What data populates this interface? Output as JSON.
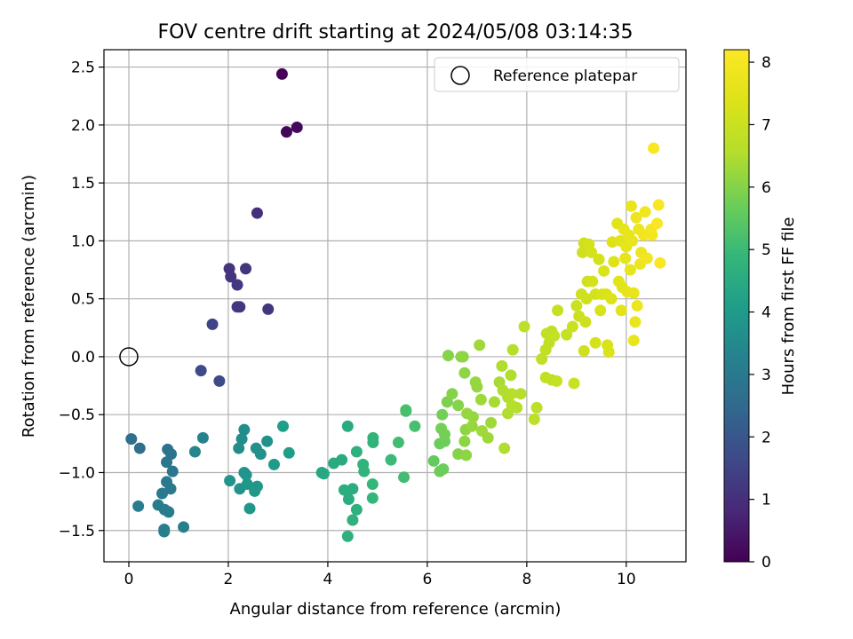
{
  "chart_data": {
    "type": "scatter",
    "title": "FOV centre drift starting at 2024/05/08 03:14:35",
    "xlabel": "Angular distance from reference (arcmin)",
    "ylabel": "Rotation from reference (arcmin)",
    "xlim": [
      -0.5,
      11.2
    ],
    "ylim": [
      -1.77,
      2.65
    ],
    "xticks": [
      0,
      2,
      4,
      6,
      8,
      10
    ],
    "yticks": [
      -1.5,
      -1.0,
      -0.5,
      0.0,
      0.5,
      1.0,
      1.5,
      2.0,
      2.5
    ],
    "xtick_labels": [
      "0",
      "2",
      "4",
      "6",
      "8",
      "10"
    ],
    "ytick_labels": [
      "−1.5",
      "−1.0",
      "−0.5",
      "0.0",
      "0.5",
      "1.0",
      "1.5",
      "2.0",
      "2.5"
    ],
    "grid": true,
    "legend": {
      "position": "top-right",
      "entries": [
        "Reference platepar"
      ]
    },
    "reference_point": {
      "x": 0.0,
      "y": 0.0
    },
    "colorbar": {
      "label": "Hours from first FF file",
      "colormap": "viridis",
      "range": [
        0,
        8.2
      ],
      "ticks": [
        0,
        1,
        2,
        3,
        4,
        5,
        6,
        7,
        8
      ],
      "tick_labels": [
        "0",
        "1",
        "2",
        "3",
        "4",
        "5",
        "6",
        "7",
        "8"
      ]
    },
    "points": [
      {
        "x": 3.08,
        "y": 2.44,
        "c": 0.05
      },
      {
        "x": 3.17,
        "y": 1.94,
        "c": 0.1
      },
      {
        "x": 3.38,
        "y": 1.98,
        "c": 0.15
      },
      {
        "x": 2.58,
        "y": 1.24,
        "c": 1.0
      },
      {
        "x": 2.02,
        "y": 0.76,
        "c": 1.1
      },
      {
        "x": 2.05,
        "y": 0.69,
        "c": 1.1
      },
      {
        "x": 2.35,
        "y": 0.76,
        "c": 1.15
      },
      {
        "x": 2.18,
        "y": 0.62,
        "c": 1.2
      },
      {
        "x": 2.18,
        "y": 0.43,
        "c": 1.2
      },
      {
        "x": 2.23,
        "y": 0.43,
        "c": 1.2
      },
      {
        "x": 2.8,
        "y": 0.41,
        "c": 1.15
      },
      {
        "x": 1.68,
        "y": 0.28,
        "c": 1.5
      },
      {
        "x": 1.45,
        "y": -0.12,
        "c": 1.7
      },
      {
        "x": 1.82,
        "y": -0.21,
        "c": 1.7
      },
      {
        "x": 0.05,
        "y": -0.71,
        "c": 2.7
      },
      {
        "x": 0.22,
        "y": -0.79,
        "c": 2.7
      },
      {
        "x": 0.78,
        "y": -0.8,
        "c": 2.8
      },
      {
        "x": 0.85,
        "y": -0.84,
        "c": 2.8
      },
      {
        "x": 0.76,
        "y": -0.91,
        "c": 2.9
      },
      {
        "x": 0.88,
        "y": -0.99,
        "c": 2.9
      },
      {
        "x": 0.76,
        "y": -1.08,
        "c": 3.0
      },
      {
        "x": 0.84,
        "y": -1.14,
        "c": 3.0
      },
      {
        "x": 0.67,
        "y": -1.18,
        "c": 3.0
      },
      {
        "x": 0.59,
        "y": -1.28,
        "c": 3.1
      },
      {
        "x": 0.72,
        "y": -1.32,
        "c": 3.1
      },
      {
        "x": 0.8,
        "y": -1.34,
        "c": 3.1
      },
      {
        "x": 0.19,
        "y": -1.29,
        "c": 3.1
      },
      {
        "x": 0.71,
        "y": -1.49,
        "c": 3.2
      },
      {
        "x": 0.71,
        "y": -1.51,
        "c": 3.2
      },
      {
        "x": 1.1,
        "y": -1.47,
        "c": 3.2
      },
      {
        "x": 1.33,
        "y": -0.82,
        "c": 3.4
      },
      {
        "x": 1.49,
        "y": -0.7,
        "c": 3.3
      },
      {
        "x": 2.27,
        "y": -0.71,
        "c": 3.6
      },
      {
        "x": 2.32,
        "y": -0.63,
        "c": 3.6
      },
      {
        "x": 2.21,
        "y": -0.79,
        "c": 3.6
      },
      {
        "x": 2.56,
        "y": -0.79,
        "c": 3.7
      },
      {
        "x": 2.65,
        "y": -0.84,
        "c": 3.7
      },
      {
        "x": 2.78,
        "y": -0.73,
        "c": 3.7
      },
      {
        "x": 2.32,
        "y": -1.0,
        "c": 3.8
      },
      {
        "x": 2.36,
        "y": -1.02,
        "c": 3.8
      },
      {
        "x": 2.03,
        "y": -1.07,
        "c": 3.8
      },
      {
        "x": 2.23,
        "y": -1.14,
        "c": 3.8
      },
      {
        "x": 2.38,
        "y": -1.1,
        "c": 3.9
      },
      {
        "x": 2.58,
        "y": -1.12,
        "c": 3.9
      },
      {
        "x": 2.53,
        "y": -1.16,
        "c": 3.9
      },
      {
        "x": 2.43,
        "y": -1.31,
        "c": 3.9
      },
      {
        "x": 2.92,
        "y": -0.93,
        "c": 4.0
      },
      {
        "x": 3.1,
        "y": -0.6,
        "c": 4.1
      },
      {
        "x": 3.22,
        "y": -0.83,
        "c": 4.1
      },
      {
        "x": 3.88,
        "y": -1.0,
        "c": 4.4
      },
      {
        "x": 3.92,
        "y": -1.01,
        "c": 4.4
      },
      {
        "x": 4.12,
        "y": -0.92,
        "c": 4.5
      },
      {
        "x": 4.28,
        "y": -0.89,
        "c": 4.5
      },
      {
        "x": 4.4,
        "y": -0.6,
        "c": 4.5
      },
      {
        "x": 4.33,
        "y": -1.15,
        "c": 4.6
      },
      {
        "x": 4.42,
        "y": -1.23,
        "c": 4.6
      },
      {
        "x": 4.5,
        "y": -1.14,
        "c": 4.6
      },
      {
        "x": 4.4,
        "y": -1.55,
        "c": 4.7
      },
      {
        "x": 4.5,
        "y": -1.41,
        "c": 4.7
      },
      {
        "x": 4.58,
        "y": -1.32,
        "c": 4.7
      },
      {
        "x": 4.58,
        "y": -0.82,
        "c": 4.7
      },
      {
        "x": 4.71,
        "y": -0.93,
        "c": 4.8
      },
      {
        "x": 4.73,
        "y": -0.99,
        "c": 4.8
      },
      {
        "x": 4.91,
        "y": -0.7,
        "c": 4.8
      },
      {
        "x": 4.91,
        "y": -0.74,
        "c": 4.8
      },
      {
        "x": 4.9,
        "y": -1.1,
        "c": 4.9
      },
      {
        "x": 4.9,
        "y": -1.22,
        "c": 4.9
      },
      {
        "x": 5.27,
        "y": -0.89,
        "c": 5.0
      },
      {
        "x": 5.42,
        "y": -0.74,
        "c": 5.1
      },
      {
        "x": 5.53,
        "y": -1.04,
        "c": 5.1
      },
      {
        "x": 5.57,
        "y": -0.46,
        "c": 5.2
      },
      {
        "x": 5.57,
        "y": -0.47,
        "c": 5.2
      },
      {
        "x": 5.75,
        "y": -0.6,
        "c": 5.2
      },
      {
        "x": 6.13,
        "y": -0.9,
        "c": 5.6
      },
      {
        "x": 6.25,
        "y": -0.99,
        "c": 5.7
      },
      {
        "x": 6.32,
        "y": -0.97,
        "c": 5.7
      },
      {
        "x": 6.25,
        "y": -0.75,
        "c": 5.7
      },
      {
        "x": 6.35,
        "y": -0.73,
        "c": 5.7
      },
      {
        "x": 6.3,
        "y": -0.5,
        "c": 5.8
      },
      {
        "x": 6.28,
        "y": -0.62,
        "c": 5.8
      },
      {
        "x": 6.35,
        "y": -0.67,
        "c": 5.8
      },
      {
        "x": 6.4,
        "y": -0.39,
        "c": 5.9
      },
      {
        "x": 6.42,
        "y": 0.01,
        "c": 6.0
      },
      {
        "x": 6.5,
        "y": -0.32,
        "c": 6.0
      },
      {
        "x": 6.62,
        "y": -0.42,
        "c": 6.0
      },
      {
        "x": 6.68,
        "y": 0.0,
        "c": 6.1
      },
      {
        "x": 6.72,
        "y": 0.0,
        "c": 6.1
      },
      {
        "x": 6.75,
        "y": -0.14,
        "c": 6.1
      },
      {
        "x": 6.62,
        "y": -0.84,
        "c": 6.0
      },
      {
        "x": 6.75,
        "y": -0.73,
        "c": 6.1
      },
      {
        "x": 6.77,
        "y": -0.63,
        "c": 6.1
      },
      {
        "x": 6.78,
        "y": -0.85,
        "c": 6.1
      },
      {
        "x": 6.8,
        "y": -0.49,
        "c": 6.2
      },
      {
        "x": 6.92,
        "y": -0.52,
        "c": 6.2
      },
      {
        "x": 6.9,
        "y": -0.6,
        "c": 6.2
      },
      {
        "x": 6.97,
        "y": -0.22,
        "c": 6.2
      },
      {
        "x": 7.0,
        "y": -0.26,
        "c": 6.2
      },
      {
        "x": 7.05,
        "y": 0.1,
        "c": 6.3
      },
      {
        "x": 7.08,
        "y": -0.37,
        "c": 6.3
      },
      {
        "x": 7.1,
        "y": -0.64,
        "c": 6.3
      },
      {
        "x": 7.22,
        "y": -0.7,
        "c": 6.3
      },
      {
        "x": 7.28,
        "y": -0.57,
        "c": 6.3
      },
      {
        "x": 7.35,
        "y": -0.39,
        "c": 6.4
      },
      {
        "x": 7.45,
        "y": -0.22,
        "c": 6.4
      },
      {
        "x": 7.5,
        "y": -0.08,
        "c": 6.5
      },
      {
        "x": 7.52,
        "y": -0.29,
        "c": 6.5
      },
      {
        "x": 7.55,
        "y": -0.79,
        "c": 6.5
      },
      {
        "x": 7.62,
        "y": -0.49,
        "c": 6.5
      },
      {
        "x": 7.62,
        "y": -0.35,
        "c": 6.5
      },
      {
        "x": 7.68,
        "y": -0.16,
        "c": 6.5
      },
      {
        "x": 7.7,
        "y": -0.42,
        "c": 6.6
      },
      {
        "x": 7.7,
        "y": -0.32,
        "c": 6.6
      },
      {
        "x": 7.72,
        "y": 0.06,
        "c": 6.6
      },
      {
        "x": 7.8,
        "y": -0.44,
        "c": 6.6
      },
      {
        "x": 7.88,
        "y": -0.32,
        "c": 6.6
      },
      {
        "x": 7.95,
        "y": 0.26,
        "c": 6.7
      },
      {
        "x": 8.15,
        "y": -0.54,
        "c": 6.7
      },
      {
        "x": 8.2,
        "y": -0.44,
        "c": 6.7
      },
      {
        "x": 8.3,
        "y": -0.02,
        "c": 6.8
      },
      {
        "x": 8.38,
        "y": 0.06,
        "c": 6.8
      },
      {
        "x": 8.4,
        "y": 0.2,
        "c": 6.8
      },
      {
        "x": 8.38,
        "y": -0.18,
        "c": 6.8
      },
      {
        "x": 8.45,
        "y": 0.12,
        "c": 6.8
      },
      {
        "x": 8.5,
        "y": 0.22,
        "c": 6.8
      },
      {
        "x": 8.5,
        "y": -0.2,
        "c": 6.8
      },
      {
        "x": 8.55,
        "y": 0.18,
        "c": 6.9
      },
      {
        "x": 8.6,
        "y": -0.21,
        "c": 6.9
      },
      {
        "x": 8.62,
        "y": 0.4,
        "c": 6.9
      },
      {
        "x": 8.8,
        "y": 0.19,
        "c": 6.9
      },
      {
        "x": 8.92,
        "y": 0.26,
        "c": 7.0
      },
      {
        "x": 8.95,
        "y": -0.23,
        "c": 7.0
      },
      {
        "x": 9.0,
        "y": 0.44,
        "c": 7.0
      },
      {
        "x": 9.05,
        "y": 0.35,
        "c": 7.0
      },
      {
        "x": 9.1,
        "y": 0.54,
        "c": 7.1
      },
      {
        "x": 9.12,
        "y": 0.9,
        "c": 7.1
      },
      {
        "x": 9.15,
        "y": 0.98,
        "c": 7.1
      },
      {
        "x": 9.15,
        "y": 0.05,
        "c": 7.1
      },
      {
        "x": 9.18,
        "y": 0.3,
        "c": 7.1
      },
      {
        "x": 9.2,
        "y": 0.5,
        "c": 7.1
      },
      {
        "x": 9.22,
        "y": 0.65,
        "c": 7.1
      },
      {
        "x": 9.25,
        "y": 0.97,
        "c": 7.2
      },
      {
        "x": 9.3,
        "y": 0.9,
        "c": 7.2
      },
      {
        "x": 9.32,
        "y": 0.65,
        "c": 7.2
      },
      {
        "x": 9.38,
        "y": 0.54,
        "c": 7.2
      },
      {
        "x": 9.38,
        "y": 0.12,
        "c": 7.2
      },
      {
        "x": 9.45,
        "y": 0.84,
        "c": 7.2
      },
      {
        "x": 9.48,
        "y": 0.4,
        "c": 7.3
      },
      {
        "x": 9.52,
        "y": 0.54,
        "c": 7.3
      },
      {
        "x": 9.55,
        "y": 0.74,
        "c": 7.3
      },
      {
        "x": 9.6,
        "y": 0.54,
        "c": 7.3
      },
      {
        "x": 9.62,
        "y": 0.1,
        "c": 7.3
      },
      {
        "x": 9.65,
        "y": 0.04,
        "c": 7.3
      },
      {
        "x": 9.7,
        "y": 0.5,
        "c": 7.4
      },
      {
        "x": 9.72,
        "y": 0.99,
        "c": 7.4
      },
      {
        "x": 9.75,
        "y": 0.82,
        "c": 7.4
      },
      {
        "x": 9.82,
        "y": 1.15,
        "c": 7.5
      },
      {
        "x": 9.85,
        "y": 0.65,
        "c": 7.5
      },
      {
        "x": 9.88,
        "y": 1.0,
        "c": 7.5
      },
      {
        "x": 9.9,
        "y": 0.4,
        "c": 7.5
      },
      {
        "x": 9.92,
        "y": 0.6,
        "c": 7.5
      },
      {
        "x": 9.95,
        "y": 1.1,
        "c": 7.6
      },
      {
        "x": 9.98,
        "y": 0.85,
        "c": 7.6
      },
      {
        "x": 10.0,
        "y": 0.95,
        "c": 7.6
      },
      {
        "x": 10.02,
        "y": 0.56,
        "c": 7.6
      },
      {
        "x": 10.05,
        "y": 1.05,
        "c": 7.7
      },
      {
        "x": 10.08,
        "y": 0.75,
        "c": 7.7
      },
      {
        "x": 10.1,
        "y": 1.3,
        "c": 7.7
      },
      {
        "x": 10.12,
        "y": 1.0,
        "c": 7.7
      },
      {
        "x": 10.15,
        "y": 0.55,
        "c": 7.7
      },
      {
        "x": 10.15,
        "y": 0.14,
        "c": 7.7
      },
      {
        "x": 10.18,
        "y": 0.3,
        "c": 7.7
      },
      {
        "x": 10.2,
        "y": 1.2,
        "c": 7.8
      },
      {
        "x": 10.22,
        "y": 0.44,
        "c": 7.8
      },
      {
        "x": 10.25,
        "y": 1.1,
        "c": 7.8
      },
      {
        "x": 10.28,
        "y": 0.8,
        "c": 7.8
      },
      {
        "x": 10.3,
        "y": 0.9,
        "c": 7.8
      },
      {
        "x": 10.35,
        "y": 1.05,
        "c": 7.9
      },
      {
        "x": 10.38,
        "y": 1.25,
        "c": 7.9
      },
      {
        "x": 10.42,
        "y": 0.85,
        "c": 7.9
      },
      {
        "x": 10.5,
        "y": 1.1,
        "c": 8.0
      },
      {
        "x": 10.52,
        "y": 1.05,
        "c": 8.0
      },
      {
        "x": 10.55,
        "y": 1.8,
        "c": 8.1
      },
      {
        "x": 10.62,
        "y": 1.15,
        "c": 8.1
      },
      {
        "x": 10.65,
        "y": 1.31,
        "c": 8.1
      },
      {
        "x": 10.68,
        "y": 0.81,
        "c": 8.1
      }
    ]
  }
}
